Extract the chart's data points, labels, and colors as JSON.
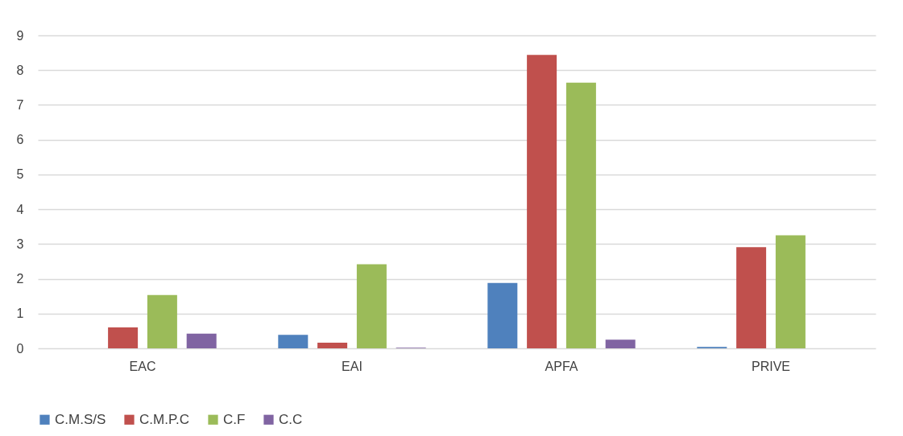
{
  "chart_data": {
    "type": "bar",
    "categories": [
      "EAC",
      "EAI",
      "APFA",
      "PRIVE"
    ],
    "series": [
      {
        "name": "C.M.S/S",
        "color": "#4f81bd",
        "values": [
          0,
          0.39,
          1.88,
          0.04
        ]
      },
      {
        "name": "C.M.P.C",
        "color": "#c0504d",
        "values": [
          0.6,
          0.16,
          8.44,
          2.91
        ]
      },
      {
        "name": "C.F",
        "color": "#9bbb59",
        "values": [
          1.53,
          2.42,
          7.64,
          3.25
        ]
      },
      {
        "name": "C.C",
        "color": "#8064a2",
        "values": [
          0.42,
          0.02,
          0.25,
          0
        ]
      }
    ],
    "ylim": [
      0,
      9
    ],
    "yticks": [
      0,
      1,
      2,
      3,
      4,
      5,
      6,
      7,
      8,
      9
    ],
    "grid": "y",
    "legend": "bottom"
  }
}
